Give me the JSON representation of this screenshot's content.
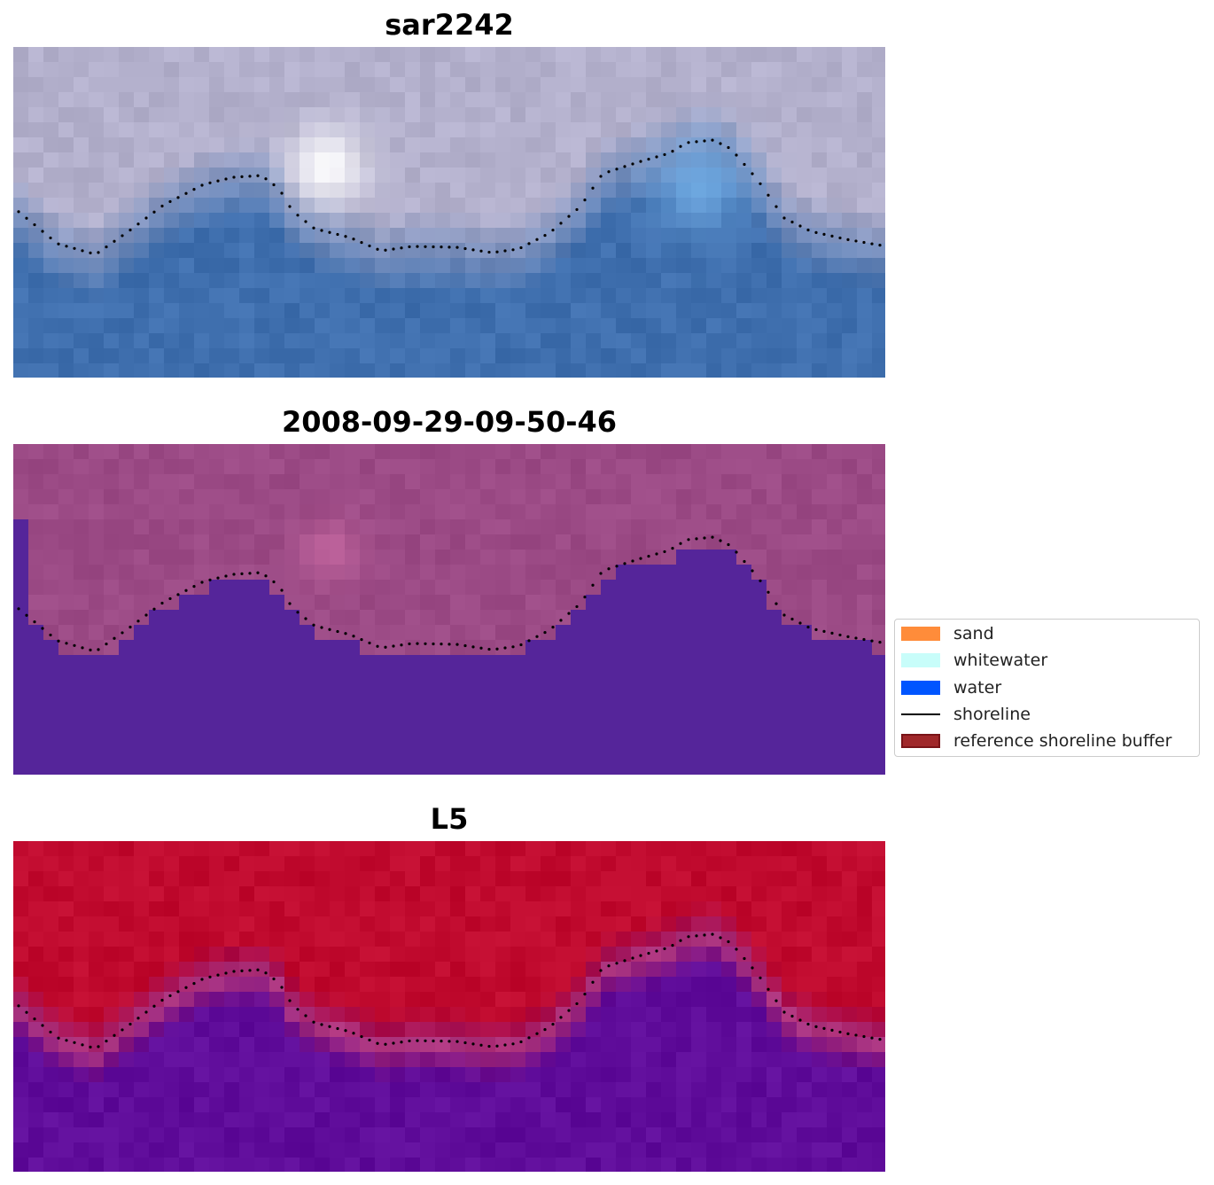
{
  "panels": [
    {
      "title": "sar2242",
      "style": "rgb"
    },
    {
      "title": "2008-09-29-09-50-46",
      "style": "classified"
    },
    {
      "title": "L5",
      "style": "index"
    }
  ],
  "legend": {
    "items": [
      {
        "label": "sand",
        "color": "#ff8c3a",
        "kind": "patch"
      },
      {
        "label": "whitewater",
        "color": "#c8fdfa",
        "kind": "patch"
      },
      {
        "label": "water",
        "color": "#0055ff",
        "kind": "patch"
      },
      {
        "label": "shoreline",
        "color": "#000000",
        "kind": "line"
      },
      {
        "label": "reference shoreline buffer",
        "color": "#a0282a",
        "kind": "patch"
      }
    ]
  },
  "colors": {
    "sand_overlay": "#9b4a85",
    "water_overlay": "#55259a",
    "index_high": "#c00a2e",
    "index_low": "#5f0c9a",
    "rgb_water": "#3f6fae",
    "rgb_land": "#b3b0cc"
  }
}
